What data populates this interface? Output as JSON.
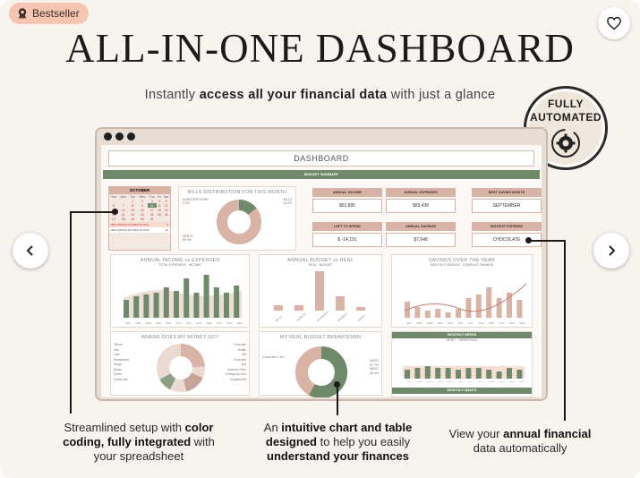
{
  "badge": {
    "label": "Bestseller",
    "icon": "award-ribbon-icon"
  },
  "favorite": {
    "icon": "heart-icon"
  },
  "headline": "ALL-IN-ONE DASHBOARD",
  "subline": {
    "pre": "Instantly ",
    "bold": "access all your financial data",
    "post": " with just a glance"
  },
  "automated": {
    "line1": "FULLY",
    "line2": "AUTOMATED",
    "icon": "gear-refresh-icon"
  },
  "dashboard": {
    "title": "DASHBOARD",
    "summary_bar": "BUDGET SUMMARY",
    "calendar": {
      "month": "OCTOBER",
      "weekdays": [
        "Sun",
        "Mon",
        "Tue",
        "Wed",
        "Thu",
        "Fri",
        "Sat"
      ],
      "weeks": [
        [
          "",
          "",
          "1",
          "2",
          "3",
          "4",
          "5"
        ],
        [
          "6",
          "7",
          "8",
          "9",
          "10",
          "11",
          "12"
        ],
        [
          "13",
          "14",
          "15",
          "16",
          "17",
          "18",
          "19"
        ],
        [
          "20",
          "21",
          "22",
          "23",
          "24",
          "25",
          "26"
        ],
        [
          "27",
          "28",
          "29",
          "30",
          "31",
          "",
          ""
        ]
      ],
      "highlight_day": "10",
      "footer_rows": [
        {
          "label": "RECURRING PAYMENTS DUE",
          "value": "0"
        },
        {
          "label": "RECURRING PAYMENTS PAID",
          "value": "45"
        }
      ]
    },
    "bills_panel": {
      "title": "BILLS DISTRIBUTION FOR THIS MONTH",
      "labels": {
        "left_top": "SUBSCRIPTIONS",
        "left_top_pct": "0.0%",
        "right_top": "BILLS",
        "right_top_pct": "14.0%",
        "left_bottom": "DEBTS",
        "left_bottom_pct": "86.0%"
      }
    },
    "kpis": [
      {
        "label": "ANNUAL INCOME",
        "value": "$62,895"
      },
      {
        "label": "ANNUAL EXPENSES",
        "value": "$69,438"
      },
      {
        "label": "BEST SAVING MONTH",
        "value": "SEPTEMBER"
      },
      {
        "label": "LEFT TO SPEND",
        "value": "$ -14,191"
      },
      {
        "label": "ANNUAL SAVINGS",
        "value": "$7,648"
      },
      {
        "label": "BIGGEST EXPENSE",
        "value": "CHOCOLATE"
      }
    ],
    "income_chart": {
      "title": "ANNUAL INCOME vs EXPENSES",
      "legend": [
        "TOTAL EXPENSES",
        "INCOME"
      ]
    },
    "budget_real": {
      "title": "ANNUAL BUDGET vs REAL",
      "legend": [
        "REAL",
        "BUDGET"
      ],
      "categories": [
        "BILLS",
        "SUBSCR.",
        "EXPENSES",
        "SAVINGS",
        "DEBTS"
      ]
    },
    "savings_chart": {
      "title": "SAVINGS OVER THE YEAR",
      "legend": [
        "MONTHLY SAVINGS",
        "COMPILED SAVINGS"
      ]
    },
    "where_money": {
      "title": "WHERE DOES MY MONEY GO?",
      "left": [
        "Others",
        "Gas",
        "Sala",
        "Restaurants",
        "Drugs",
        "Books",
        "Shoes",
        "Family bills"
      ],
      "right": [
        "Chocolate",
        "Health",
        "Gift",
        "Groceries",
        "Spa",
        "Amazon Prime",
        "Emergency fund",
        "Hospital bills"
      ]
    },
    "real_budget": {
      "title": "MY REAL BUDGET BREAKDOWN",
      "labels": {
        "left": "Groceries",
        "left_pct": "4.1%",
        "right": "NEED",
        "right_pct": "57.7%",
        "right2": "WANT",
        "right2_pct": "38.2%"
      }
    },
    "monthly_needs": {
      "title": "MONTHLY NEEDS",
      "legend": [
        "NEED",
        "THRESHOLD"
      ]
    },
    "monthly_wants": {
      "title": "MONTHLY WANTS"
    },
    "months": [
      "JAN",
      "FEB",
      "MAR",
      "APR",
      "MAY",
      "JUN",
      "JUL",
      "AUG",
      "SEP",
      "OCT",
      "NOV",
      "DEC"
    ]
  },
  "nav": {
    "prev_icon": "chevron-left-icon",
    "next_icon": "chevron-right-icon"
  },
  "callouts": {
    "left": {
      "line1_pre": "Streamlined setup with ",
      "line1_bold": "color",
      "line2_bold": "coding, fully integrated",
      "line2_post": " with",
      "line3": "your spreadsheet"
    },
    "center": {
      "line1_pre": "An ",
      "line1_bold": "intuitive chart and table",
      "line2_bold": "designed",
      "line2_post": " to help you easily",
      "line3_bold": "understand your finances"
    },
    "right": {
      "line1_pre": "View your ",
      "line1_bold": "annual financial",
      "line2": "data automatically"
    }
  },
  "colors": {
    "sage": "#6f8a6b",
    "blush": "#d8b3a6",
    "sand": "#e7ddd4",
    "badge": "#f6c6b2"
  }
}
